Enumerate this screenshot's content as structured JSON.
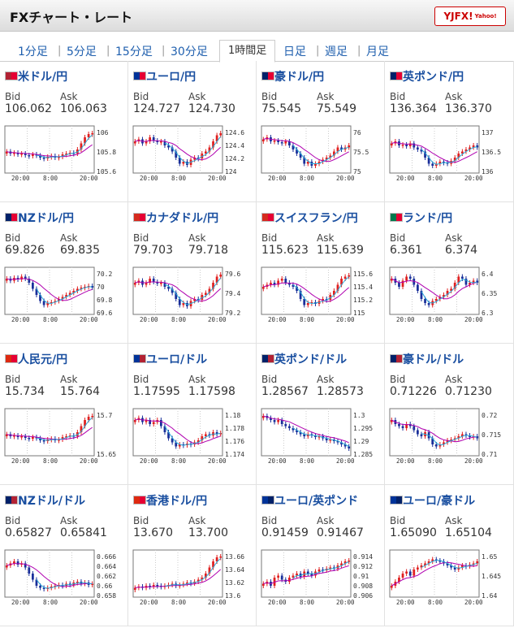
{
  "app_title": "FXチャート・レート",
  "brand": {
    "name": "YJFX!",
    "tag": "Yahoo!"
  },
  "tabs": [
    "1分足",
    "5分足",
    "15分足",
    "30分足",
    "1時間足",
    "日足",
    "週足",
    "月足"
  ],
  "active_tab": "1時間足",
  "labels": {
    "bid": "Bid",
    "ask": "Ask"
  },
  "colors": {
    "up": "#e02020",
    "down": "#1a2f9a",
    "ma_short": "#2aa8d8",
    "ma_long": "#b000b0",
    "pair_text": "#1a4fa0"
  },
  "pairs": [
    {
      "name": "米ドル/円",
      "bid": "106.062",
      "ask": "106.063",
      "flag": [
        "#b22234",
        "#e60033"
      ],
      "yticks": [
        "106",
        "105.8",
        "105.6"
      ],
      "xticks": [
        "20:00",
        "8:00",
        "20:00"
      ],
      "shape": "A"
    },
    {
      "name": "ユーロ/円",
      "bid": "124.727",
      "ask": "124.730",
      "flag": [
        "#003399",
        "#e60033"
      ],
      "yticks": [
        "124.6",
        "124.4",
        "124.2",
        "124"
      ],
      "xticks": [
        "20:00",
        "8:00",
        "20:00"
      ],
      "shape": "B"
    },
    {
      "name": "豪ドル/円",
      "bid": "75.545",
      "ask": "75.549",
      "flag": [
        "#012169",
        "#e60033"
      ],
      "yticks": [
        "76",
        "75.5",
        "75"
      ],
      "xticks": [
        "20:00",
        "8:00",
        "20:00"
      ],
      "shape": "C"
    },
    {
      "name": "英ポンド/円",
      "bid": "136.364",
      "ask": "136.370",
      "flag": [
        "#012169",
        "#e60033"
      ],
      "yticks": [
        "137",
        "136.5",
        "136"
      ],
      "xticks": [
        "20:00",
        "8:00",
        "20:00"
      ],
      "shape": "D"
    },
    {
      "name": "NZドル/円",
      "bid": "69.826",
      "ask": "69.835",
      "flag": [
        "#012169",
        "#e60033"
      ],
      "yticks": [
        "70.2",
        "70",
        "69.8",
        "69.6"
      ],
      "xticks": [
        "20:00",
        "8:00",
        "20:00"
      ],
      "shape": "E"
    },
    {
      "name": "カナダドル/円",
      "bid": "79.703",
      "ask": "79.718",
      "flag": [
        "#d52b1e",
        "#e60033"
      ],
      "yticks": [
        "79.6",
        "79.4",
        "79.2"
      ],
      "xticks": [
        "20:00",
        "8:00",
        "20:00"
      ],
      "shape": "B"
    },
    {
      "name": "スイスフラン/円",
      "bid": "115.623",
      "ask": "115.639",
      "flag": [
        "#d52b1e",
        "#e60033"
      ],
      "yticks": [
        "115.6",
        "115.4",
        "115.2",
        "115"
      ],
      "xticks": [
        "20:00",
        "8:00",
        "20:00"
      ],
      "shape": "F"
    },
    {
      "name": "ランド/円",
      "bid": "6.361",
      "ask": "6.374",
      "flag": [
        "#007a4d",
        "#e60033"
      ],
      "yticks": [
        "6.4",
        "6.35",
        "6.3"
      ],
      "xticks": [
        "20:00",
        "8:00",
        "20:00"
      ],
      "shape": "G"
    },
    {
      "name": "人民元/円",
      "bid": "15.734",
      "ask": "15.764",
      "flag": [
        "#de2910",
        "#e60033"
      ],
      "yticks": [
        "15.7",
        "15.65"
      ],
      "xticks": [
        "20:00",
        "8:00",
        "20:00"
      ],
      "shape": "A"
    },
    {
      "name": "ユーロ/ドル",
      "bid": "1.17595",
      "ask": "1.17598",
      "flag": [
        "#003399",
        "#b22234"
      ],
      "yticks": [
        "1.18",
        "1.178",
        "1.176",
        "1.174"
      ],
      "xticks": [
        "20:00",
        "8:00",
        "20:00"
      ],
      "shape": "H"
    },
    {
      "name": "英ポンド/ドル",
      "bid": "1.28567",
      "ask": "1.28573",
      "flag": [
        "#012169",
        "#b22234"
      ],
      "yticks": [
        "1.3",
        "1.295",
        "1.29",
        "1.285"
      ],
      "xticks": [
        "20:00",
        "8:00",
        "20:00"
      ],
      "shape": "I"
    },
    {
      "name": "豪ドル/ドル",
      "bid": "0.71226",
      "ask": "0.71230",
      "flag": [
        "#012169",
        "#b22234"
      ],
      "yticks": [
        "0.72",
        "0.715",
        "0.71"
      ],
      "xticks": [
        "20:00",
        "8:00",
        "20:00"
      ],
      "shape": "J"
    },
    {
      "name": "NZドル/ドル",
      "bid": "0.65827",
      "ask": "0.65841",
      "flag": [
        "#012169",
        "#b22234"
      ],
      "yticks": [
        "0.666",
        "0.664",
        "0.662",
        "0.66",
        "0.658"
      ],
      "xticks": [
        "20:00",
        "8:00",
        "20:00"
      ],
      "shape": "K"
    },
    {
      "name": "香港ドル/円",
      "bid": "13.670",
      "ask": "13.700",
      "flag": [
        "#de2910",
        "#e60033"
      ],
      "yticks": [
        "13.66",
        "13.64",
        "13.62",
        "13.6"
      ],
      "xticks": [
        "20:00",
        "8:00",
        "20:00"
      ],
      "shape": "L"
    },
    {
      "name": "ユーロ/英ポンド",
      "bid": "0.91459",
      "ask": "0.91467",
      "flag": [
        "#003399",
        "#012169"
      ],
      "yticks": [
        "0.914",
        "0.912",
        "0.91",
        "0.908",
        "0.906"
      ],
      "xticks": [
        "20:00",
        "8:00",
        "20:00"
      ],
      "shape": "M"
    },
    {
      "name": "ユーロ/豪ドル",
      "bid": "1.65090",
      "ask": "1.65104",
      "flag": [
        "#003399",
        "#012169"
      ],
      "yticks": [
        "1.65",
        "1.645",
        "1.64"
      ],
      "xticks": [
        "20:00",
        "8:00",
        "20:00"
      ],
      "shape": "N"
    }
  ]
}
